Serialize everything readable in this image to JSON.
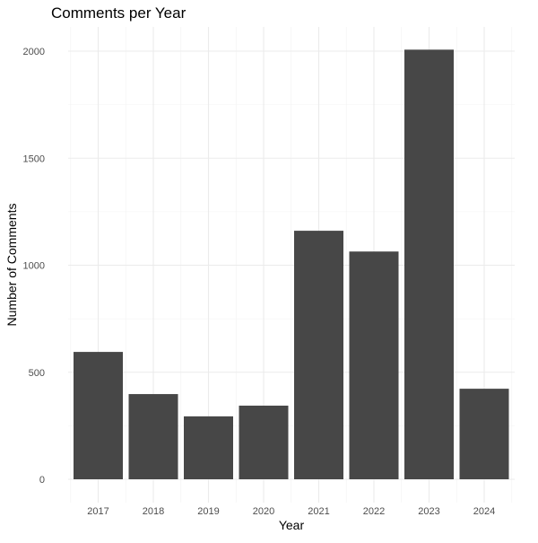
{
  "chart_data": {
    "type": "bar",
    "title": "Comments per Year",
    "xlabel": "Year",
    "ylabel": "Number of Comments",
    "categories": [
      "2017",
      "2018",
      "2019",
      "2020",
      "2021",
      "2022",
      "2023",
      "2024"
    ],
    "values": [
      595,
      398,
      294,
      344,
      1161,
      1064,
      2007,
      423
    ],
    "ylim": [
      0,
      2100
    ],
    "yticks": [
      0,
      500,
      1000,
      1500,
      2000
    ],
    "grid": true,
    "bar_color": "#474747",
    "grid_color": "#ebebeb"
  }
}
